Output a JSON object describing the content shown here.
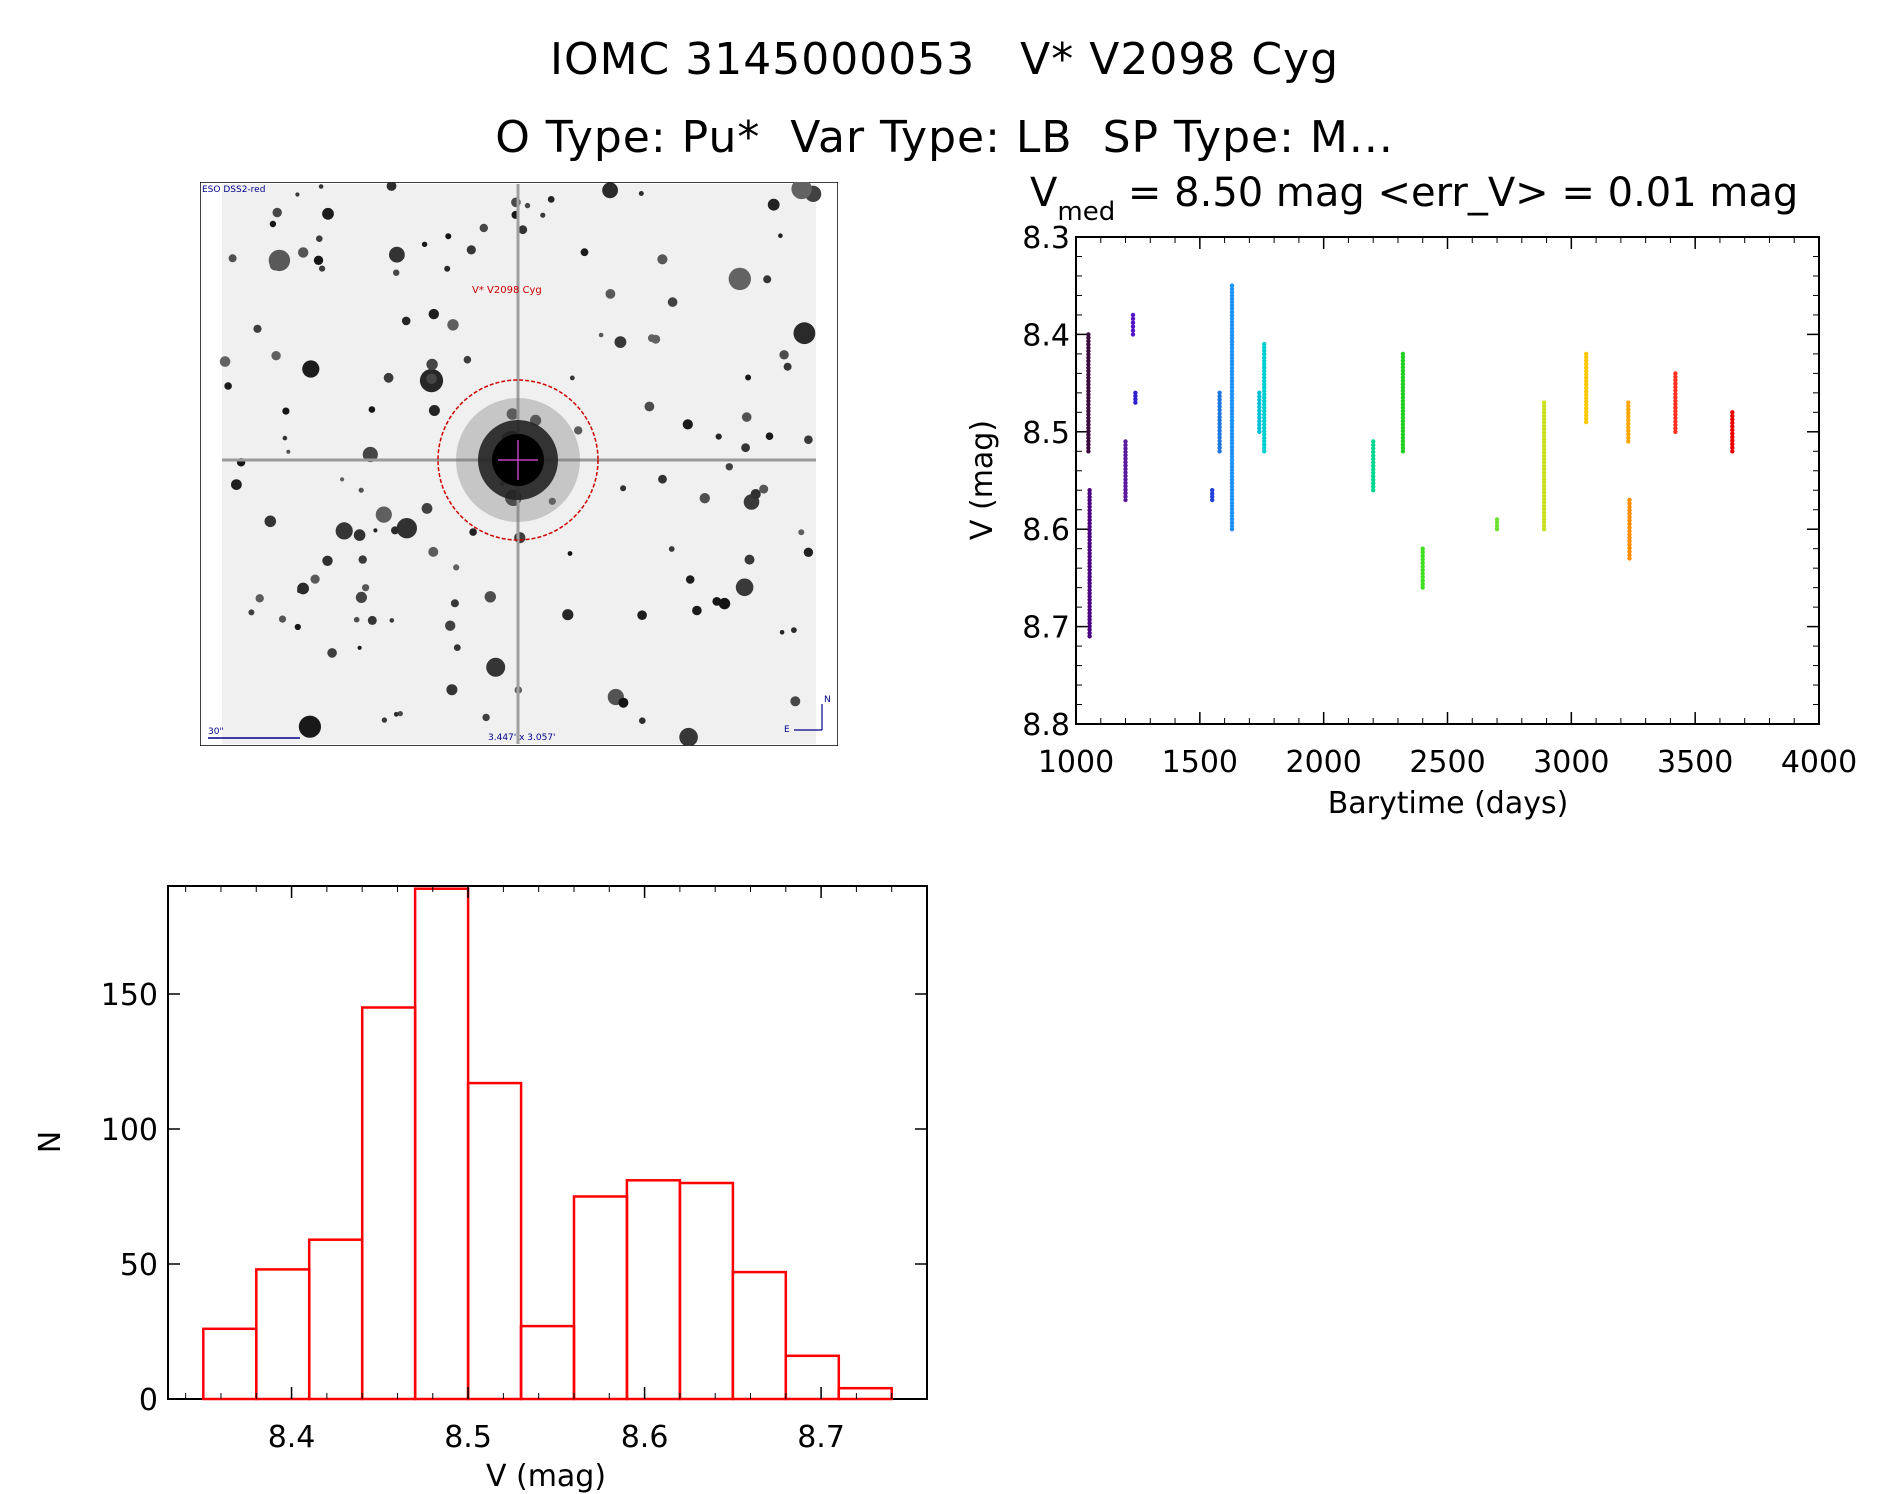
{
  "header": {
    "title_line1": "IOMC 3145000053   V* V2098 Cyg",
    "title_line2": "O Type: Pu*  Var Type: LB  SP Type: M..."
  },
  "image_panel": {
    "survey_label": "ESO DSS2-red",
    "object_label": "V* V2098 Cyg",
    "scale_label": "30\"",
    "size_label": "3.447' x 3.057'",
    "north_label": "N",
    "east_label": "E"
  },
  "lightcurve": {
    "stat_v": "V",
    "stat_sub": "med",
    "stat_rest": " = 8.50 mag <err_V> = 0.01 mag",
    "xlabel": "Barytime (days)",
    "ylabel": "V (mag)"
  },
  "colors": {
    "histogram": "#ff0000",
    "circle": "#cc0000",
    "label_blue": "#00008b"
  },
  "chart_data": [
    {
      "type": "scatter",
      "title": "Vmed = 8.50 mag <err_V> = 0.01 mag",
      "xlabel": "Barytime (days)",
      "ylabel": "V (mag)",
      "xlim": [
        1000,
        4000
      ],
      "ylim": [
        8.8,
        8.3
      ],
      "y_inverted": true,
      "xticks": [
        1000,
        1500,
        2000,
        2500,
        3000,
        3500,
        4000
      ],
      "yticks": [
        8.3,
        8.4,
        8.5,
        8.6,
        8.7,
        8.8
      ],
      "groups": [
        {
          "x": 1050,
          "ymin": 8.4,
          "ymax": 8.52,
          "color": "#3d0a3d"
        },
        {
          "x": 1055,
          "ymin": 8.56,
          "ymax": 8.71,
          "color": "#4b0082"
        },
        {
          "x": 1200,
          "ymin": 8.51,
          "ymax": 8.57,
          "color": "#5a1aa0"
        },
        {
          "x": 1230,
          "ymin": 8.38,
          "ymax": 8.4,
          "color": "#5516c8"
        },
        {
          "x": 1240,
          "ymin": 8.46,
          "ymax": 8.47,
          "color": "#3020d0"
        },
        {
          "x": 1550,
          "ymin": 8.56,
          "ymax": 8.57,
          "color": "#2040d8"
        },
        {
          "x": 1580,
          "ymin": 8.46,
          "ymax": 8.52,
          "color": "#1e78e0"
        },
        {
          "x": 1630,
          "ymin": 8.35,
          "ymax": 8.6,
          "color": "#1e90ff"
        },
        {
          "x": 1740,
          "ymin": 8.46,
          "ymax": 8.5,
          "color": "#00bfd8"
        },
        {
          "x": 1760,
          "ymin": 8.41,
          "ymax": 8.52,
          "color": "#00ced1"
        },
        {
          "x": 2200,
          "ymin": 8.51,
          "ymax": 8.56,
          "color": "#00d890"
        },
        {
          "x": 2320,
          "ymin": 8.42,
          "ymax": 8.52,
          "color": "#20d020"
        },
        {
          "x": 2400,
          "ymin": 8.62,
          "ymax": 8.66,
          "color": "#40e020"
        },
        {
          "x": 2700,
          "ymin": 8.59,
          "ymax": 8.6,
          "color": "#70e030"
        },
        {
          "x": 2890,
          "ymin": 8.47,
          "ymax": 8.6,
          "color": "#c8e020"
        },
        {
          "x": 3060,
          "ymin": 8.42,
          "ymax": 8.49,
          "color": "#ffc800"
        },
        {
          "x": 3230,
          "ymin": 8.47,
          "ymax": 8.51,
          "color": "#ffa500"
        },
        {
          "x": 3235,
          "ymin": 8.57,
          "ymax": 8.63,
          "color": "#ff8c00"
        },
        {
          "x": 3420,
          "ymin": 8.44,
          "ymax": 8.5,
          "color": "#ff3020"
        },
        {
          "x": 3650,
          "ymin": 8.48,
          "ymax": 8.52,
          "color": "#ee0000"
        }
      ]
    },
    {
      "type": "bar",
      "subtype": "histogram",
      "xlabel": "V (mag)",
      "ylabel": "N",
      "xlim": [
        8.33,
        8.76
      ],
      "ylim": [
        0,
        190
      ],
      "xticks": [
        8.4,
        8.5,
        8.6,
        8.7
      ],
      "yticks": [
        0,
        50,
        100,
        150
      ],
      "bin_width": 0.03,
      "bin_starts": [
        8.35,
        8.38,
        8.41,
        8.44,
        8.47,
        8.5,
        8.53,
        8.56,
        8.59,
        8.62,
        8.65,
        8.68,
        8.71
      ],
      "values": [
        26,
        48,
        59,
        145,
        189,
        117,
        27,
        75,
        81,
        80,
        47,
        16,
        4
      ]
    }
  ]
}
